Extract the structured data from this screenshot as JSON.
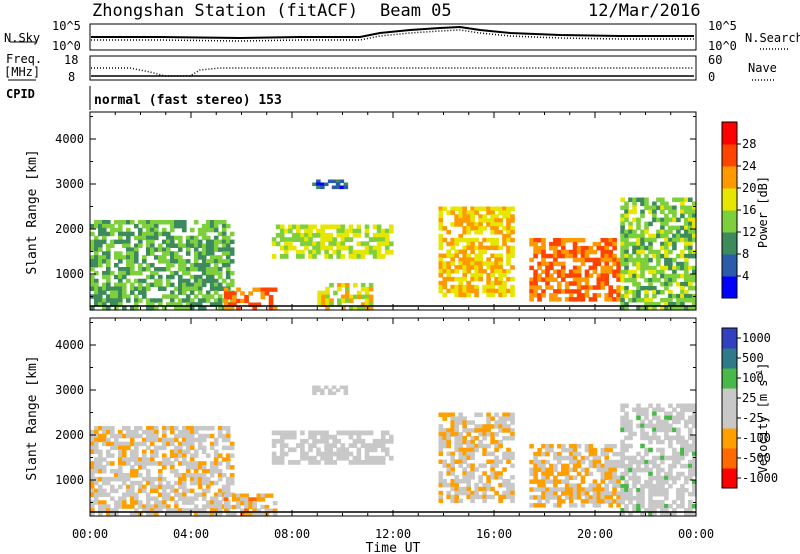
{
  "title": {
    "station": "Zhongshan Station (fitACF)",
    "beam": "Beam 05",
    "date": "12/Mar/2016"
  },
  "header": {
    "nsky_label": "N.Sky",
    "nsky_ticks": [
      "10^5",
      "10^0"
    ],
    "nsearch_label": "N.Search",
    "freq_label": "Freq.",
    "freq_unit": "[MHz]",
    "freq_ticks": [
      "18",
      "8"
    ],
    "nave_ticks": [
      "60",
      "0"
    ],
    "nave_label": "Nave",
    "cpid_label": "CPID",
    "cpid_text": "normal (fast stereo) 153"
  },
  "colors": {
    "power": [
      "#0000ff",
      "#2a5caa",
      "#3d8a5c",
      "#7ecf3c",
      "#e6e600",
      "#ff9900",
      "#ff4400",
      "#ff0000"
    ],
    "velocity": [
      "#ff0000",
      "#ff6a00",
      "#ffa000",
      "#c8c8c8",
      "#c8c8c8",
      "#48b848",
      "#2e7a8a",
      "#3040c0"
    ]
  },
  "chart_data": [
    {
      "type": "heatmap",
      "name": "power",
      "xlabel": "",
      "ylabel": "Slant Range [km]",
      "xlim": [
        "00:00",
        "24:00"
      ],
      "ylim": [
        200,
        4600
      ],
      "yticks": [
        "1000",
        "2000",
        "3000",
        "4000"
      ],
      "colorbar": {
        "label": "Power [dB]",
        "ticks": [
          "4",
          "8",
          "12",
          "16",
          "20",
          "24",
          "28"
        ],
        "range": [
          0,
          32
        ]
      },
      "regions": [
        {
          "t0": 0.0,
          "t1": 5.7,
          "r0": 200,
          "r1": 2200,
          "level": 12
        },
        {
          "t0": 5.3,
          "t1": 7.4,
          "r0": 200,
          "r1": 700,
          "level": 24
        },
        {
          "t0": 7.2,
          "t1": 12.0,
          "r0": 1350,
          "r1": 2100,
          "level": 16
        },
        {
          "t0": 8.8,
          "t1": 10.2,
          "r0": 2900,
          "r1": 3100,
          "level": 6
        },
        {
          "t0": 9.0,
          "t1": 11.2,
          "r0": 200,
          "r1": 800,
          "level": 18
        },
        {
          "t0": 13.8,
          "t1": 16.8,
          "r0": 500,
          "r1": 2500,
          "level": 20
        },
        {
          "t0": 17.4,
          "t1": 21.0,
          "r0": 400,
          "r1": 1800,
          "level": 24
        },
        {
          "t0": 21.0,
          "t1": 24.0,
          "r0": 200,
          "r1": 2700,
          "level": 14
        }
      ]
    },
    {
      "type": "heatmap",
      "name": "velocity",
      "xlabel": "Time UT",
      "ylabel": "Slant Range [km]",
      "xlim": [
        "00:00",
        "24:00"
      ],
      "xticks": [
        "00:00",
        "04:00",
        "08:00",
        "12:00",
        "16:00",
        "20:00",
        "00:00"
      ],
      "ylim": [
        200,
        4600
      ],
      "yticks": [
        "1000",
        "2000",
        "3000",
        "4000"
      ],
      "colorbar": {
        "label": "Velocity [m s",
        "label_exponent": "-1",
        "label_close": "]",
        "ticks": [
          "1000",
          "500",
          "100",
          "25",
          "-25",
          "-100",
          "-500",
          "-1000"
        ],
        "range": [
          -1000,
          1000
        ]
      },
      "regions": [
        {
          "t0": 0.0,
          "t1": 5.7,
          "r0": 200,
          "r1": 2200,
          "level": -150
        },
        {
          "t0": 5.3,
          "t1": 7.4,
          "r0": 200,
          "r1": 700,
          "level": -300
        },
        {
          "t0": 7.2,
          "t1": 12.0,
          "r0": 1350,
          "r1": 2100,
          "level": 0
        },
        {
          "t0": 8.8,
          "t1": 10.2,
          "r0": 2900,
          "r1": 3100,
          "level": 0
        },
        {
          "t0": 13.8,
          "t1": 16.8,
          "r0": 500,
          "r1": 2500,
          "level": -200
        },
        {
          "t0": 17.4,
          "t1": 21.0,
          "r0": 400,
          "r1": 1800,
          "level": -250
        },
        {
          "t0": 21.0,
          "t1": 24.0,
          "r0": 200,
          "r1": 2700,
          "level": 50
        }
      ]
    }
  ]
}
